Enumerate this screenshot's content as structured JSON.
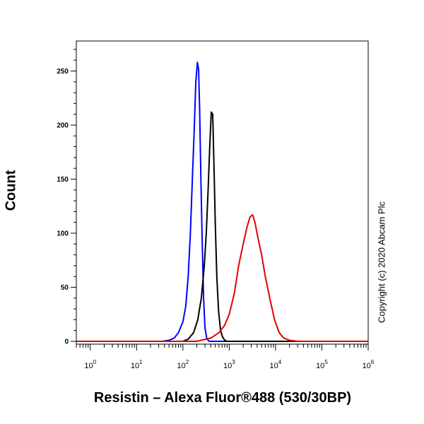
{
  "chart_data": {
    "type": "line",
    "xlabel": "Resistin – Alexa Fluor®488 (530/30BP)",
    "ylabel": "Count",
    "xscale": "log",
    "xlim": [
      0.5,
      1000000
    ],
    "ylim": [
      0,
      280
    ],
    "x_ticks": [
      {
        "value": 1,
        "base": "10",
        "exp": "0"
      },
      {
        "value": 10,
        "base": "10",
        "exp": "1"
      },
      {
        "value": 100,
        "base": "10",
        "exp": "2"
      },
      {
        "value": 1000,
        "base": "10",
        "exp": "3"
      },
      {
        "value": 10000,
        "base": "10",
        "exp": "4"
      },
      {
        "value": 100000,
        "base": "10",
        "exp": "5"
      },
      {
        "value": 1000000,
        "base": "10",
        "exp": "6"
      }
    ],
    "y_ticks": [
      0,
      50,
      100,
      150,
      200,
      250
    ],
    "grid": false,
    "series": [
      {
        "color": "#0000ff",
        "x": [
          36,
          50,
          65,
          80,
          100,
          115,
          130,
          145,
          160,
          175,
          190,
          205,
          218,
          230,
          245,
          262,
          280,
          300,
          330,
          370,
          420,
          500,
          700,
          5000,
          100000,
          1000000
        ],
        "y": [
          0,
          1,
          3,
          8,
          18,
          32,
          60,
          100,
          150,
          195,
          240,
          258,
          252,
          215,
          150,
          90,
          40,
          12,
          2,
          0,
          0,
          0,
          0,
          0,
          0,
          0
        ]
      },
      {
        "color": "#000000",
        "x": [
          100,
          130,
          170,
          210,
          250,
          290,
          320,
          350,
          380,
          410,
          440,
          470,
          500,
          540,
          590,
          650,
          720,
          800,
          900,
          1100,
          10000,
          1000000
        ],
        "y": [
          0,
          2,
          8,
          20,
          40,
          70,
          100,
          140,
          180,
          212,
          210,
          160,
          110,
          60,
          28,
          10,
          4,
          1,
          0,
          0,
          0,
          0
        ]
      },
      {
        "color": "#e00000",
        "x": [
          0.5,
          200,
          400,
          600,
          800,
          1000,
          1300,
          1600,
          2000,
          2400,
          2800,
          3200,
          3600,
          4200,
          5000,
          6000,
          7500,
          9500,
          12000,
          15000,
          20000,
          30000,
          100000,
          1000000
        ],
        "y": [
          0,
          0,
          3,
          8,
          15,
          25,
          45,
          70,
          90,
          105,
          115,
          117,
          110,
          95,
          80,
          60,
          40,
          20,
          8,
          3,
          1,
          0,
          0,
          0
        ]
      }
    ]
  },
  "copyright": "Copyright (c) 2020 Abcam Plc"
}
